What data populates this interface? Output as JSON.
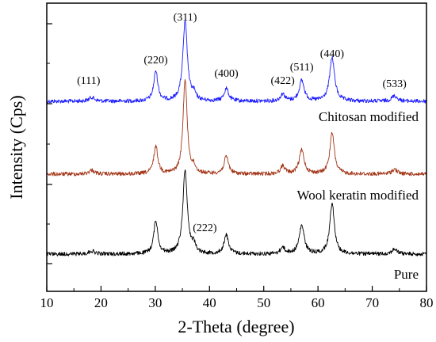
{
  "chart_data": {
    "type": "line",
    "xlabel": "2-Theta (degree)",
    "ylabel": "Intensity (Cps)",
    "xlim": [
      10,
      80
    ],
    "xticks": [
      "10",
      "20",
      "30",
      "40",
      "50",
      "60",
      "70",
      "80"
    ],
    "y_tick_labels": "none",
    "grid": false,
    "series": [
      {
        "name": "Chitosan modified",
        "color": "#1a1aff",
        "offset": 2.0,
        "peaks": [
          {
            "x": 18.3,
            "h": 0.05,
            "w": 0.6
          },
          {
            "x": 30.1,
            "h": 0.38,
            "w": 0.45
          },
          {
            "x": 35.5,
            "h": 1.0,
            "w": 0.5
          },
          {
            "x": 37.1,
            "h": 0.08,
            "w": 0.4
          },
          {
            "x": 43.1,
            "h": 0.16,
            "w": 0.5
          },
          {
            "x": 53.5,
            "h": 0.09,
            "w": 0.5
          },
          {
            "x": 57.0,
            "h": 0.26,
            "w": 0.55
          },
          {
            "x": 62.6,
            "h": 0.55,
            "w": 0.55
          },
          {
            "x": 74.1,
            "h": 0.07,
            "w": 0.6
          }
        ]
      },
      {
        "name": "Wool keratin modified",
        "color": "#a33518",
        "offset": 1.0,
        "peaks": [
          {
            "x": 18.3,
            "h": 0.05,
            "w": 0.6
          },
          {
            "x": 30.1,
            "h": 0.35,
            "w": 0.45
          },
          {
            "x": 35.5,
            "h": 1.2,
            "w": 0.45
          },
          {
            "x": 37.1,
            "h": 0.07,
            "w": 0.4
          },
          {
            "x": 43.1,
            "h": 0.22,
            "w": 0.5
          },
          {
            "x": 53.5,
            "h": 0.1,
            "w": 0.5
          },
          {
            "x": 57.0,
            "h": 0.3,
            "w": 0.55
          },
          {
            "x": 62.6,
            "h": 0.52,
            "w": 0.5
          },
          {
            "x": 74.1,
            "h": 0.06,
            "w": 0.6
          }
        ]
      },
      {
        "name": "Pure",
        "color": "#000000",
        "offset": 0.0,
        "peaks": [
          {
            "x": 18.3,
            "h": 0.04,
            "w": 0.6
          },
          {
            "x": 30.1,
            "h": 0.42,
            "w": 0.45
          },
          {
            "x": 35.5,
            "h": 1.05,
            "w": 0.5
          },
          {
            "x": 37.1,
            "h": 0.1,
            "w": 0.4
          },
          {
            "x": 43.1,
            "h": 0.24,
            "w": 0.5
          },
          {
            "x": 53.5,
            "h": 0.08,
            "w": 0.5
          },
          {
            "x": 57.0,
            "h": 0.36,
            "w": 0.55
          },
          {
            "x": 62.6,
            "h": 0.65,
            "w": 0.5
          },
          {
            "x": 74.1,
            "h": 0.06,
            "w": 0.6
          }
        ]
      }
    ],
    "annotations": [
      {
        "text": "(111)",
        "x": 18.3
      },
      {
        "text": "(220)",
        "x": 30.1
      },
      {
        "text": "(311)",
        "x": 35.5
      },
      {
        "text": "(400)",
        "x": 43.1
      },
      {
        "text": "(422)",
        "x": 53.5
      },
      {
        "text": "(511)",
        "x": 57.0
      },
      {
        "text": "(440)",
        "x": 62.6
      },
      {
        "text": "(533)",
        "x": 74.1
      },
      {
        "text": "(222)",
        "x": 37.1
      }
    ]
  }
}
